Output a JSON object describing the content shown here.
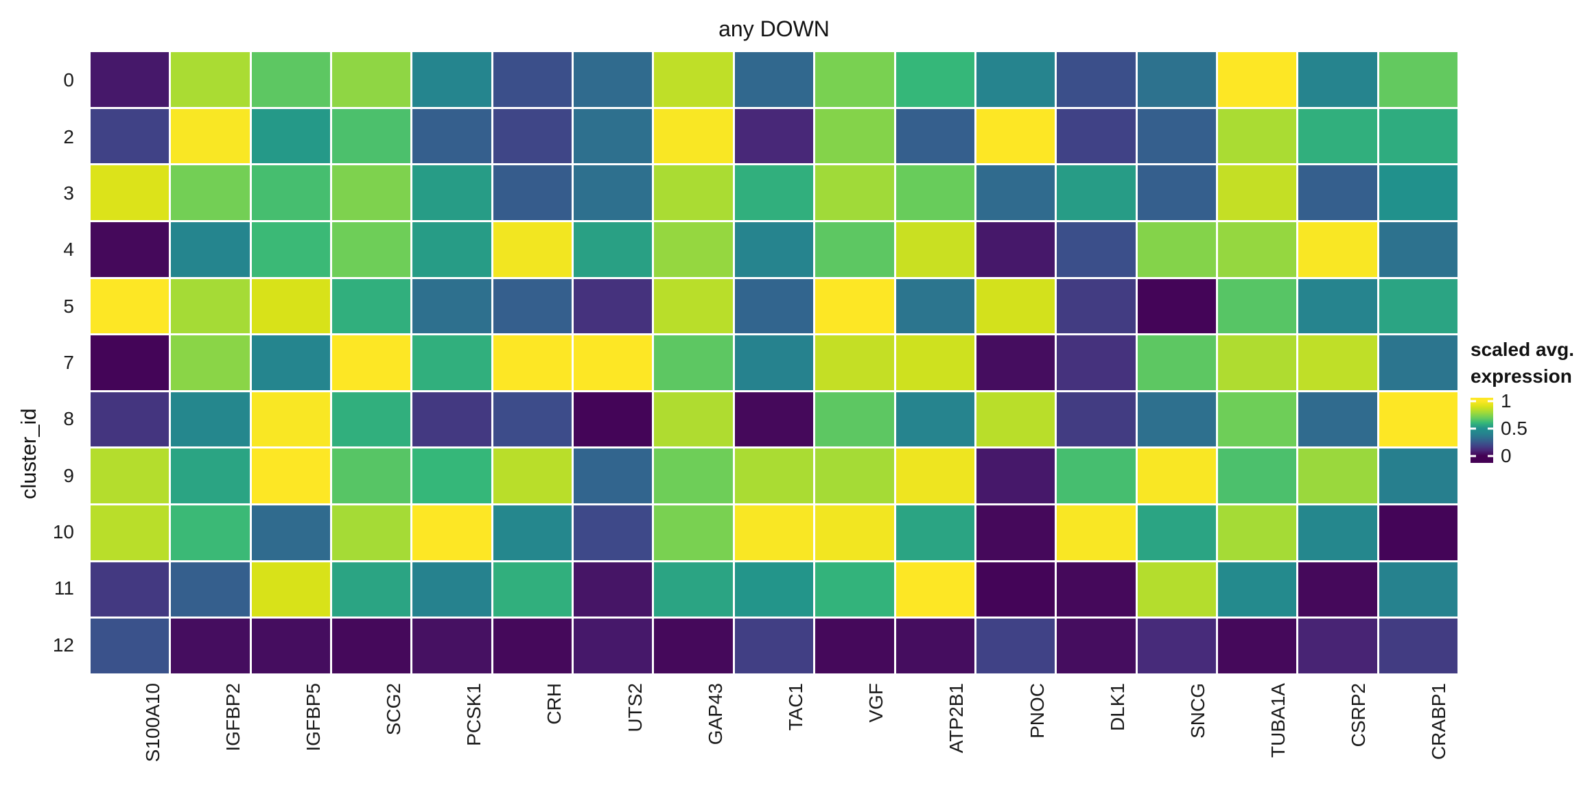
{
  "title": "any DOWN",
  "axes": {
    "y_title": "cluster_id",
    "y_tick_labels": [
      "0",
      "2",
      "3",
      "4",
      "5",
      "7",
      "8",
      "9",
      "10",
      "11",
      "12"
    ],
    "x_tick_labels": [
      "S100A10",
      "IGFBP2",
      "IGFBP5",
      "SCG2",
      "PCSK1",
      "CRH",
      "UTS2",
      "GAP43",
      "TAC1",
      "VGF",
      "ATP2B1",
      "PNOC",
      "DLK1",
      "SNCG",
      "TUBA1A",
      "CSRP2",
      "CRABP1"
    ]
  },
  "legend": {
    "title_line1": "scaled avg.",
    "title_line2": "expression",
    "tick_labels": [
      "1",
      "0.5",
      "0"
    ],
    "tick_values": [
      1,
      0.5,
      0
    ]
  },
  "colors": {
    "background": "#ffffff",
    "text": "#1a1a1a",
    "viridis_anchors": [
      "#440154",
      "#482878",
      "#3e4989",
      "#31688e",
      "#26828e",
      "#21918c",
      "#35b779",
      "#6ece58",
      "#a5db36",
      "#d8e219",
      "#fde725"
    ]
  },
  "chart_data": {
    "type": "heatmap",
    "title": "any DOWN",
    "xlabel": "",
    "ylabel": "cluster_id",
    "legend_title": "scaled avg. expression",
    "colorscale": "viridis",
    "zlim": [
      0,
      1
    ],
    "columns": [
      "S100A10",
      "IGFBP2",
      "IGFBP5",
      "SCG2",
      "PCSK1",
      "CRH",
      "UTS2",
      "GAP43",
      "TAC1",
      "VGF",
      "ATP2B1",
      "PNOC",
      "DLK1",
      "SNCG",
      "TUBA1A",
      "CSRP2",
      "CRABP1"
    ],
    "rows": [
      "0",
      "2",
      "3",
      "4",
      "5",
      "7",
      "8",
      "9",
      "10",
      "11",
      "12"
    ],
    "values": [
      [
        0.06,
        0.81,
        0.67,
        0.76,
        0.42,
        0.22,
        0.31,
        0.85,
        0.3,
        0.72,
        0.6,
        0.41,
        0.22,
        0.34,
        1.0,
        0.41,
        0.68
      ],
      [
        0.18,
        0.99,
        0.52,
        0.64,
        0.27,
        0.19,
        0.33,
        0.99,
        0.1,
        0.74,
        0.27,
        1.0,
        0.18,
        0.27,
        0.81,
        0.58,
        0.57
      ],
      [
        0.91,
        0.71,
        0.63,
        0.73,
        0.53,
        0.26,
        0.33,
        0.81,
        0.58,
        0.79,
        0.69,
        0.31,
        0.53,
        0.27,
        0.86,
        0.27,
        0.5
      ],
      [
        0.02,
        0.42,
        0.61,
        0.7,
        0.53,
        0.97,
        0.54,
        0.77,
        0.41,
        0.67,
        0.87,
        0.06,
        0.22,
        0.74,
        0.77,
        0.99,
        0.34
      ],
      [
        1.0,
        0.8,
        0.9,
        0.58,
        0.33,
        0.27,
        0.13,
        0.84,
        0.29,
        1.0,
        0.35,
        0.89,
        0.16,
        0.01,
        0.66,
        0.41,
        0.55
      ],
      [
        0.01,
        0.75,
        0.42,
        1.0,
        0.58,
        1.0,
        1.0,
        0.67,
        0.4,
        0.86,
        0.88,
        0.03,
        0.13,
        0.67,
        0.82,
        0.85,
        0.35
      ],
      [
        0.14,
        0.43,
        0.99,
        0.58,
        0.15,
        0.21,
        0.01,
        0.82,
        0.02,
        0.67,
        0.41,
        0.84,
        0.16,
        0.33,
        0.7,
        0.31,
        1.0
      ],
      [
        0.83,
        0.55,
        1.0,
        0.66,
        0.6,
        0.84,
        0.29,
        0.7,
        0.81,
        0.8,
        0.96,
        0.06,
        0.63,
        0.99,
        0.64,
        0.78,
        0.39
      ],
      [
        0.84,
        0.61,
        0.31,
        0.8,
        1.0,
        0.43,
        0.2,
        0.72,
        0.99,
        0.97,
        0.55,
        0.02,
        0.99,
        0.55,
        0.8,
        0.43,
        0.01
      ],
      [
        0.15,
        0.27,
        0.9,
        0.55,
        0.4,
        0.58,
        0.05,
        0.55,
        0.51,
        0.59,
        1.0,
        0.01,
        0.02,
        0.83,
        0.45,
        0.02,
        0.4
      ],
      [
        0.23,
        0.03,
        0.03,
        0.02,
        0.04,
        0.02,
        0.06,
        0.02,
        0.17,
        0.02,
        0.03,
        0.18,
        0.03,
        0.11,
        0.02,
        0.09,
        0.16
      ]
    ]
  }
}
